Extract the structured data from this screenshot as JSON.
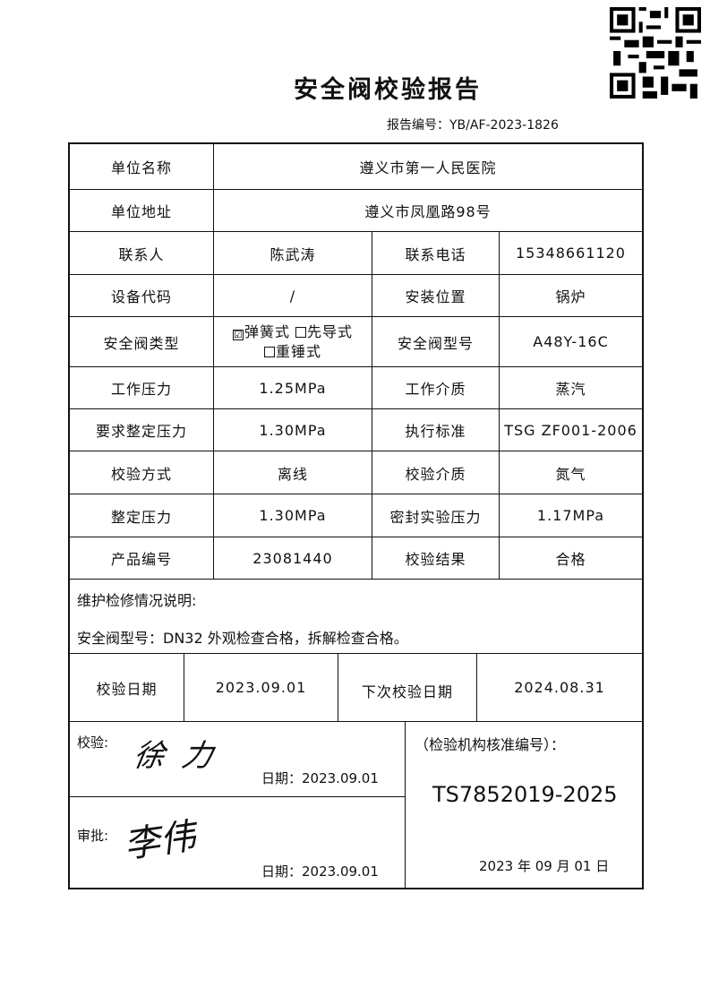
{
  "title": "安全阀校验报告",
  "report_no": "报告编号：YB/AF-2023-1826",
  "rows": {
    "unit_name": {
      "label": "单位名称",
      "value": "遵义市第一人民医院"
    },
    "unit_addr": {
      "label": "单位地址",
      "value": "遵义市凤凰路98号"
    },
    "contact": {
      "label": "联系人",
      "value": "陈武涛",
      "label2": "联系电话",
      "value2": "15348661120"
    },
    "device": {
      "label": "设备代码",
      "value": "/",
      "label2": "安装位置",
      "value2": "锅炉"
    },
    "valve_type": {
      "label": "安全阀类型",
      "options": [
        {
          "label": "弹簧式",
          "checked": true,
          "mark": "☑"
        },
        {
          "label": "先导式",
          "checked": false,
          "mark": ""
        },
        {
          "label": "重锤式",
          "checked": false,
          "mark": ""
        }
      ],
      "label2": "安全阀型号",
      "value2": "A48Y-16C"
    },
    "work": {
      "label": "工作压力",
      "value": "1.25MPa",
      "label2": "工作介质",
      "value2": "蒸汽"
    },
    "req": {
      "label": "要求整定压力",
      "value": "1.30MPa",
      "label2": "执行标准",
      "value2": "TSG ZF001-2006"
    },
    "method": {
      "label": "校验方式",
      "value": "离线",
      "label2": "校验介质",
      "value2": "氮气"
    },
    "set": {
      "label": "整定压力",
      "value": "1.30MPa",
      "label2": "密封实验压力",
      "value2": "1.17MPa"
    },
    "product": {
      "label": "产品编号",
      "value": "23081440",
      "label2": "校验结果",
      "value2": "合格"
    }
  },
  "remark": {
    "heading": "维护检修情况说明:",
    "text": "安全阀型号：DN32 外观检查合格，拆解检查合格。"
  },
  "dates": {
    "label": "校验日期",
    "value": "2023.09.01",
    "label2": "下次校验日期",
    "value2": "2024.08.31"
  },
  "sign": {
    "check_label": "校验:",
    "check_sig": "徐力",
    "check_date": "日期：2023.09.01",
    "approve_label": "审批:",
    "approve_sig": "李伟",
    "approve_date": "日期：2023.09.01",
    "org_label": "（检验机构核准编号）：",
    "org_no": "TS7852019-2025",
    "org_date": "2023 年 09 月 01 日"
  }
}
